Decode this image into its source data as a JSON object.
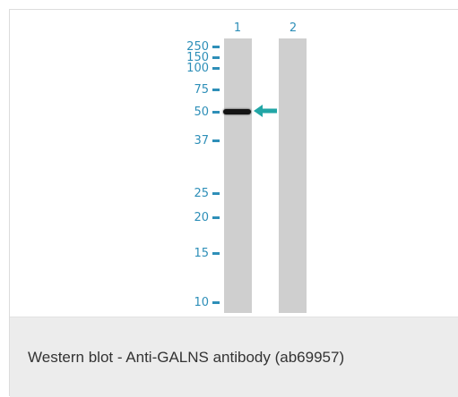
{
  "blot": {
    "lanes": [
      "1",
      "2"
    ],
    "markers": [
      "250",
      "150",
      "100",
      "75",
      "50",
      "37",
      "25",
      "20",
      "15",
      "10"
    ],
    "accent_color": "#2e8fb8",
    "arrow_color": "#22a6a6",
    "band_lane": "1",
    "band_marker": "50"
  },
  "caption": {
    "text": "Western blot - Anti-GALNS antibody (ab69957)"
  }
}
